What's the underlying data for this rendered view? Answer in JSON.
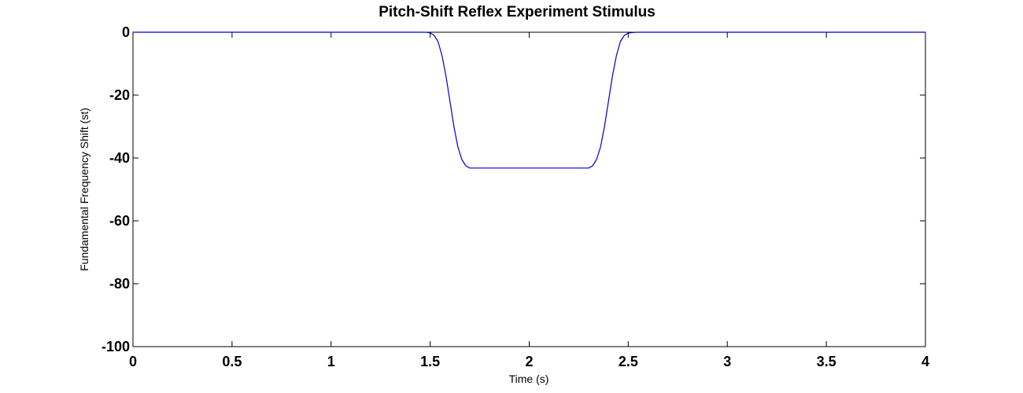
{
  "chart_data": {
    "type": "line",
    "title": "Pitch-Shift Reflex Experiment Stimulus",
    "xlabel": "Time (s)",
    "ylabel": "Fundamental Frequency Shift (st)",
    "xlim": [
      0,
      4
    ],
    "ylim": [
      -100,
      0
    ],
    "xticks": [
      0,
      0.5,
      1,
      1.5,
      2,
      2.5,
      3,
      3.5,
      4
    ],
    "xtick_labels": [
      "0",
      "0.5",
      "1",
      "1.5",
      "2",
      "2.5",
      "3",
      "3.5",
      "4"
    ],
    "yticks": [
      0,
      -20,
      -40,
      -60,
      -80,
      -100
    ],
    "ytick_labels": [
      "0",
      "-20",
      "-40",
      "-60",
      "-80",
      "-100"
    ],
    "grid": false,
    "series": [
      {
        "color": "#0000cc",
        "x": [
          0,
          1.48,
          1.5,
          1.52,
          1.54,
          1.56,
          1.58,
          1.6,
          1.62,
          1.64,
          1.66,
          1.68,
          1.7,
          2.3,
          2.32,
          2.34,
          2.36,
          2.38,
          2.4,
          2.42,
          2.44,
          2.46,
          2.48,
          2.5,
          2.52,
          2.55,
          4
        ],
        "y": [
          0,
          0,
          -0.2,
          -1,
          -3,
          -7.5,
          -14,
          -22,
          -30,
          -36.5,
          -40.5,
          -42.5,
          -43.2,
          -43.2,
          -42.5,
          -40.5,
          -36.5,
          -30,
          -22,
          -14,
          -7.5,
          -3,
          -1,
          -0.3,
          -0.1,
          0,
          0
        ]
      }
    ]
  }
}
